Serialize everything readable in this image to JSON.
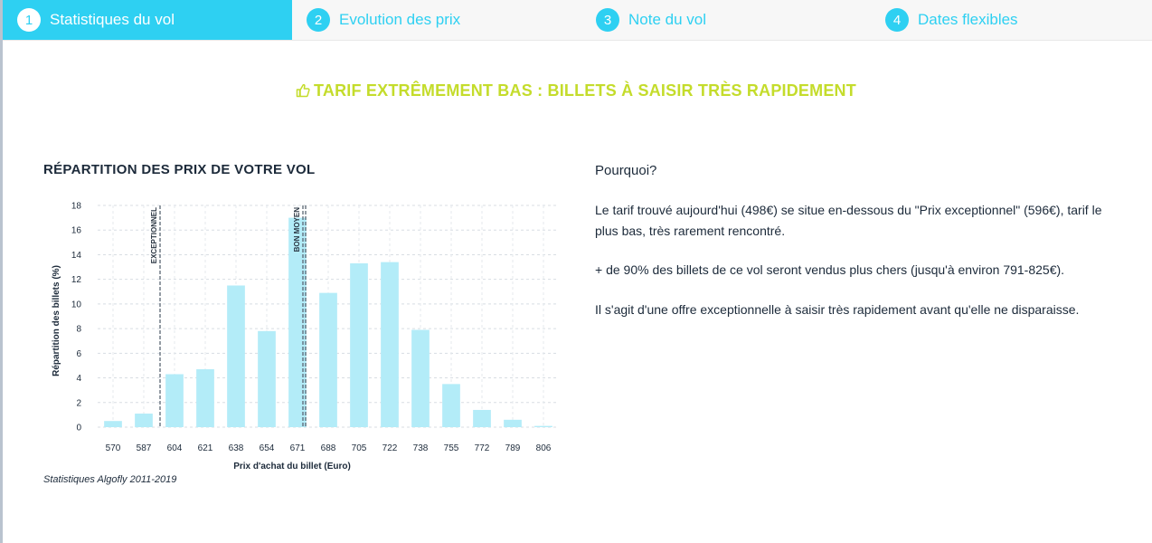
{
  "tabs": [
    {
      "num": "1",
      "label": "Statistiques du vol",
      "active": true
    },
    {
      "num": "2",
      "label": "Evolution des prix",
      "active": false
    },
    {
      "num": "3",
      "label": "Note du vol",
      "active": false
    },
    {
      "num": "4",
      "label": "Dates flexibles",
      "active": false
    }
  ],
  "headline": {
    "text": "TARIF EXTRÊMEMENT BAS : BILLETS À SAISIR TRÈS RAPIDEMENT",
    "icon": "thumbs-up-icon",
    "color": "#c4dc2b"
  },
  "section_title": "RÉPARTITION DES PRIX DE VOTRE VOL",
  "source": "Statistiques Algofly 2011-2019",
  "why": {
    "title": "Pourquoi?",
    "paragraphs": [
      "Le tarif trouvé aujourd'hui (498€) se situe en-dessous du \"Prix exceptionnel\" (596€), tarif le plus bas, très rarement rencontré.",
      "+ de 90% des billets de ce vol seront vendus plus chers (jusqu'à environ 791-825€).",
      "Il s'agit d'une offre exceptionnelle à saisir très rapidement avant qu'elle ne disparaisse."
    ]
  },
  "colors": {
    "accent": "#2ed0f2",
    "bar": "#b3ecf8",
    "headline": "#c4dc2b",
    "text": "#1c2a3a"
  },
  "chart_data": {
    "type": "bar",
    "categories": [
      "570",
      "587",
      "604",
      "621",
      "638",
      "654",
      "671",
      "688",
      "705",
      "722",
      "738",
      "755",
      "772",
      "789",
      "806"
    ],
    "values": [
      0.5,
      1.1,
      4.3,
      4.7,
      11.5,
      7.8,
      17.0,
      10.9,
      13.3,
      13.4,
      7.9,
      3.5,
      1.4,
      0.6,
      0.1
    ],
    "xlabel": "Prix d'achat du billet (Euro)",
    "ylabel": "Répartition des billets (%)",
    "ylim": [
      0,
      18
    ],
    "yticks": [
      0,
      2,
      4,
      6,
      8,
      10,
      12,
      14,
      16,
      18
    ],
    "grid": true,
    "reference_lines": [
      {
        "label": "EXCEPTIONNEL",
        "x": 596
      },
      {
        "label": "BON MOYEN",
        "x": 675
      }
    ]
  }
}
